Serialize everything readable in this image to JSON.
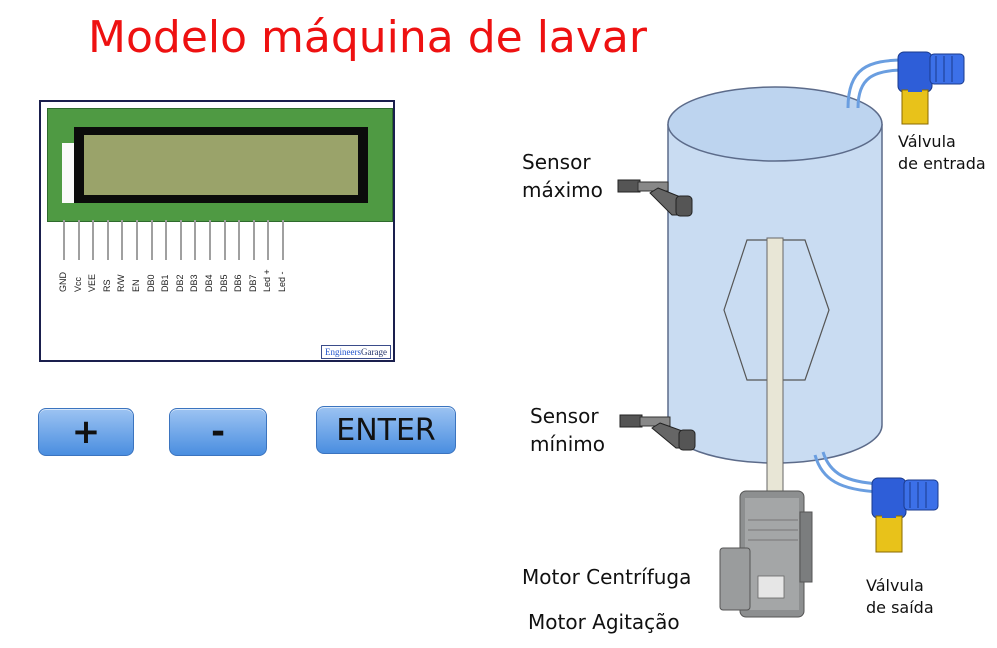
{
  "title": "Modelo máquina de lavar",
  "lcd": {
    "pins": [
      "GND",
      "Vcc",
      "VEE",
      "RS",
      "R/W",
      "EN",
      "DB0",
      "DB1",
      "DB2",
      "DB3",
      "DB4",
      "DB5",
      "DB6",
      "DB7",
      "Led +",
      "Led -"
    ],
    "brand_part1": "Engineers",
    "brand_part2": "Garage"
  },
  "buttons": {
    "plus": "+",
    "minus": "-",
    "enter": "ENTER"
  },
  "labels": {
    "sensor_max": [
      "Sensor",
      "máximo"
    ],
    "sensor_min": [
      "Sensor",
      "mínimo"
    ],
    "valve_in": [
      "Válvula",
      "de entrada"
    ],
    "valve_out": [
      "Válvula",
      "de saída"
    ],
    "motor_centrifuge": "Motor Centrífuga",
    "motor_agitation": "Motor Agitação"
  },
  "colors": {
    "title": "#ee1111",
    "tank_fill": "#c9dcf2",
    "tank_stroke": "#5c6b8a",
    "button_top": "#9cc3f2",
    "button_bottom": "#4a8ee0",
    "lcd_board": "#4f9a43",
    "lcd_screen": "#9aa36a"
  }
}
